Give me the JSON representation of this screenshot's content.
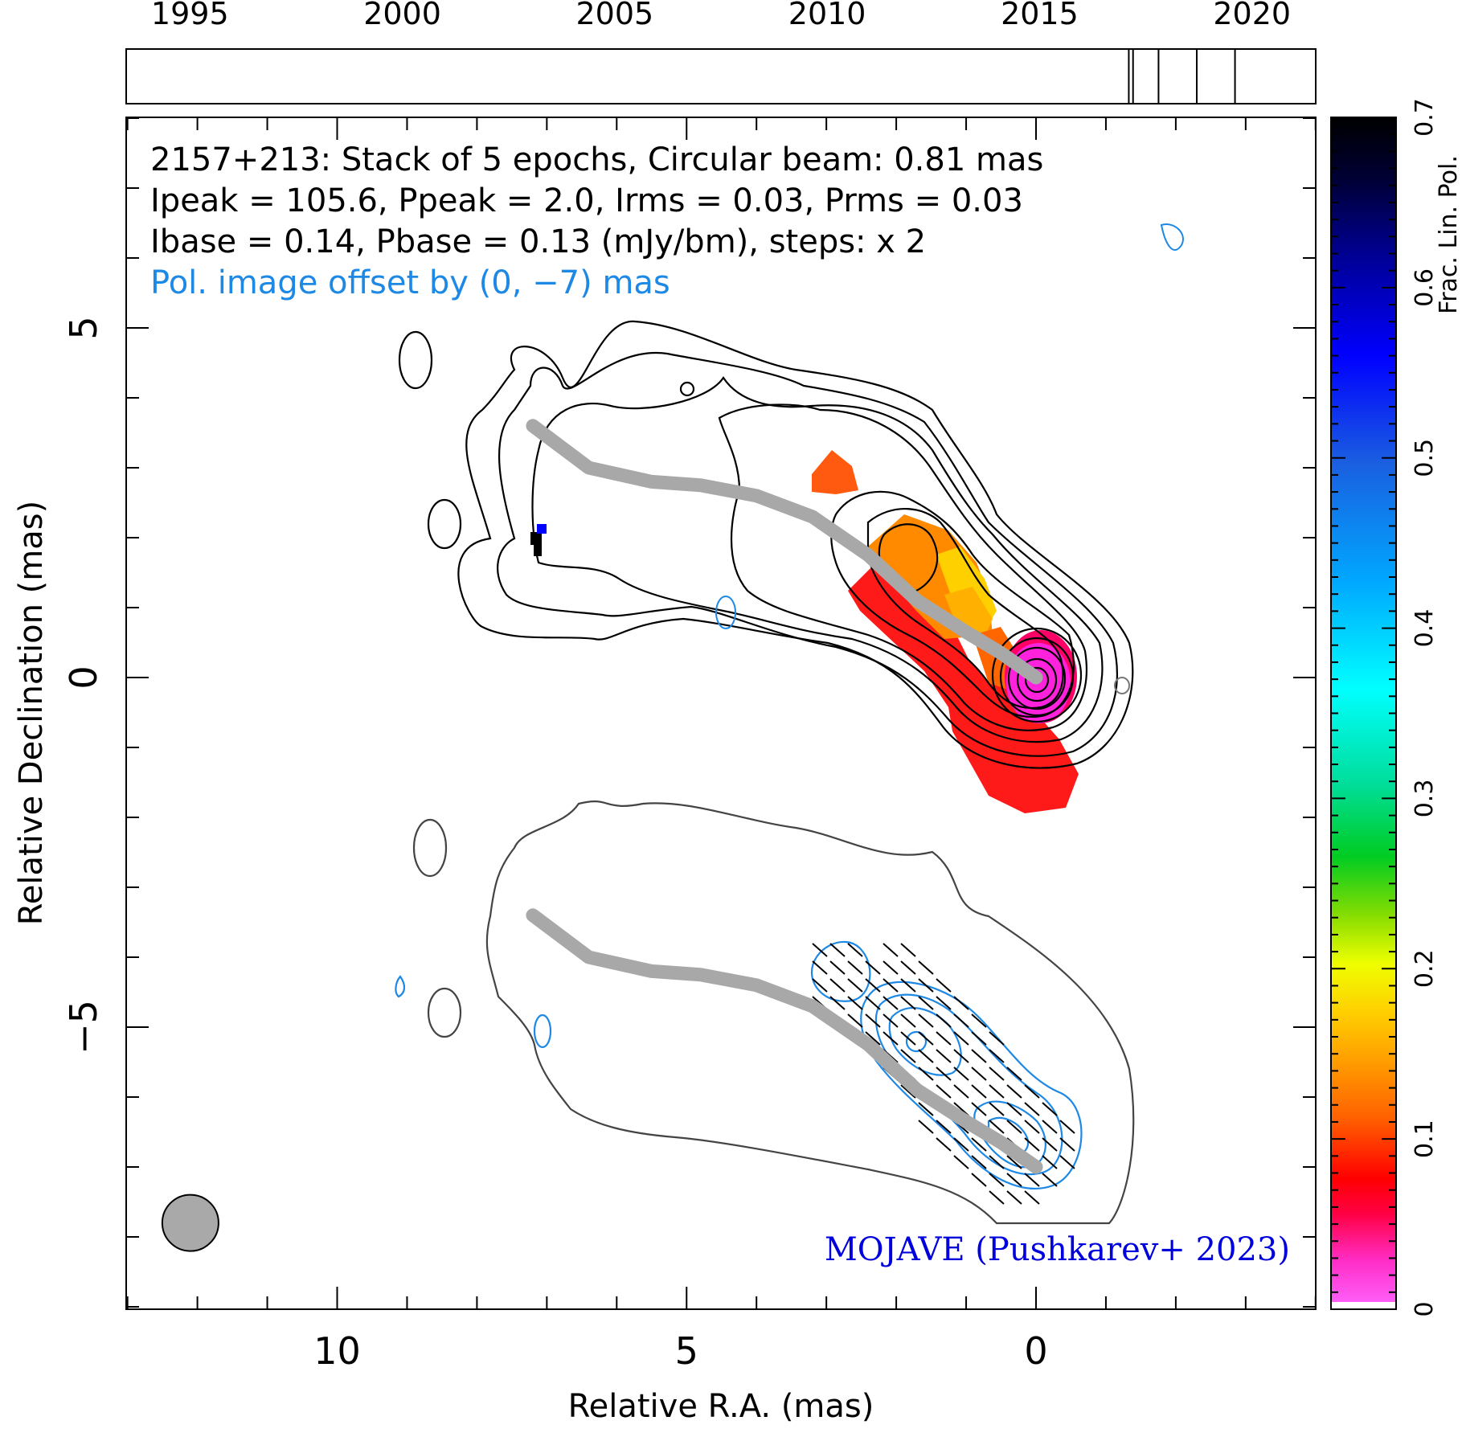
{
  "chart_data": {
    "type": "heatmap",
    "source": "2157+213",
    "title_lines": [
      "2157+213: Stack of 5 epochs, Circular beam: 0.81 mas",
      "Ipeak = 105.6, Ppeak = 2.0, Irms = 0.03, Prms = 0.03",
      "Ibase = 0.14, Pbase = 0.13 (mJy/bm), steps: x 2"
    ],
    "pol_offset_label": "Pol. image offset by (0, −7) mas",
    "credit": "MOJAVE (Pushkarev+ 2023)",
    "xlabel": "Relative R.A. (mas)",
    "ylabel": "Relative Declination (mas)",
    "colorbar_label": "Frac. Lin. Pol.",
    "xlim": [
      13,
      -4
    ],
    "ylim": [
      -9,
      8
    ],
    "x_ticks": [
      10,
      5,
      0
    ],
    "x_tick_labels": [
      "10",
      "5",
      "0"
    ],
    "y_ticks": [
      5,
      0,
      -5
    ],
    "y_tick_labels": [
      "5",
      "0",
      "−5"
    ],
    "colorbar_range": [
      0,
      0.7
    ],
    "colorbar_ticks": [
      0,
      0.1,
      0.2,
      0.3,
      0.4,
      0.5,
      0.6,
      0.7
    ],
    "colorbar_tick_labels": [
      "0",
      "0.1",
      "0.2",
      "0.3",
      "0.4",
      "0.5",
      "0.6",
      "0.7"
    ],
    "timeline": {
      "range": [
        1993.5,
        2021.5
      ],
      "tick_years": [
        1995,
        2000,
        2005,
        2010,
        2015,
        2020
      ],
      "tick_labels": [
        "1995",
        "2000",
        "2005",
        "2010",
        "2015",
        "2020"
      ],
      "epochs": [
        2017.1,
        2017.2,
        2017.8,
        2018.7,
        2019.6
      ]
    },
    "beam": {
      "center": [
        12.1,
        -7.8
      ],
      "diameter_mas": 0.81
    },
    "ridge_line": [
      [
        7.2,
        3.6
      ],
      [
        6.4,
        3.0
      ],
      [
        5.5,
        2.8
      ],
      [
        4.8,
        2.75
      ],
      [
        4.0,
        2.6
      ],
      [
        3.2,
        2.3
      ],
      [
        2.4,
        1.75
      ],
      [
        1.7,
        1.1
      ],
      [
        1.0,
        0.65
      ],
      [
        0.5,
        0.35
      ],
      [
        0.0,
        0.0
      ]
    ],
    "colors": {
      "stokes_i_contours": "#000000",
      "stokes_i_lower": "#444444",
      "pol_contours": "#1e88e5",
      "ridge": "#a8a8a8",
      "beam_fill": "#a9a9a9",
      "credit": "#0000dd",
      "pol_offset_label": "#1e88e5"
    }
  }
}
